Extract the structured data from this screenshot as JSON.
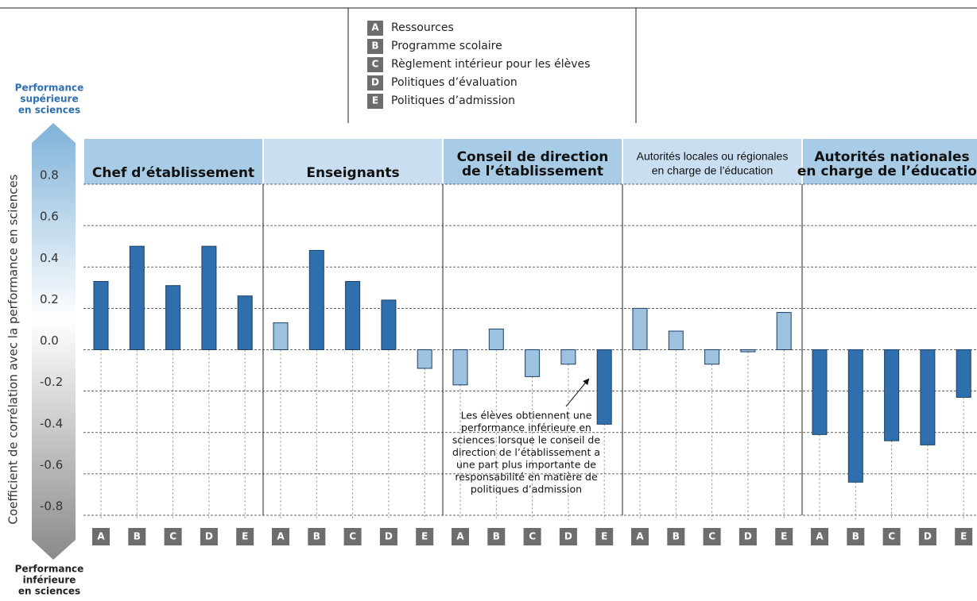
{
  "chart_data": {
    "type": "bar",
    "ylabel": "Coefficient de corrélation avec la performance en sciences",
    "top_label": [
      "Performance",
      "supérieure",
      "en sciences"
    ],
    "bottom_label": [
      "Performance",
      "inférieure",
      "en sciences"
    ],
    "categories": [
      "A",
      "B",
      "C",
      "D",
      "E"
    ],
    "legend": [
      "Ressources",
      "Programme scolaire",
      "Règlement intérieur pour les élèves",
      "Politiques d’évaluation",
      "Politiques d’admission"
    ],
    "ylim": [
      -0.8,
      0.8
    ],
    "yticks": [
      0.8,
      0.6,
      0.4,
      0.2,
      {
        "value": 0,
        "label": "0.0"
      },
      -0.2,
      -0.4,
      -0.6,
      -0.8
    ],
    "grid": true,
    "groups": [
      {
        "header": [
          "Chef d’établissement"
        ],
        "values": [
          0.33,
          0.5,
          0.31,
          0.5,
          0.26
        ],
        "colors": [
          "#2f6fad",
          "#2f6fad",
          "#2f6fad",
          "#2f6fad",
          "#2f6fad"
        ]
      },
      {
        "header": [
          "Enseignants"
        ],
        "values": [
          0.13,
          0.48,
          0.33,
          0.24,
          -0.09
        ],
        "colors": [
          "#9cc2e0",
          "#2f6fad",
          "#2f6fad",
          "#2f6fad",
          "#9cc2e0"
        ]
      },
      {
        "header": [
          "Conseil de direction",
          "de l’établissement"
        ],
        "values": [
          -0.17,
          0.1,
          -0.13,
          -0.07,
          -0.36
        ],
        "colors": [
          "#9cc2e0",
          "#9cc2e0",
          "#9cc2e0",
          "#9cc2e0",
          "#2f6fad"
        ]
      },
      {
        "header": [
          "Autorités locales ou régionales",
          "en charge de l’éducation"
        ],
        "values": [
          0.2,
          0.09,
          -0.07,
          -0.01,
          0.18
        ],
        "colors": [
          "#9cc2e0",
          "#9cc2e0",
          "#9cc2e0",
          "#9cc2e0",
          "#9cc2e0"
        ]
      },
      {
        "header": [
          "Autorités nationales",
          "en charge de l’éducation"
        ],
        "values": [
          -0.41,
          -0.64,
          -0.44,
          -0.46,
          -0.23
        ],
        "colors": [
          "#2f6fad",
          "#2f6fad",
          "#2f6fad",
          "#2f6fad",
          "#2f6fad"
        ]
      }
    ],
    "annotation": [
      "Les élèves obtiennent une",
      "performance inférieure en",
      "sciences lorsque le conseil de",
      "direction de l’établissement a",
      "une part plus importante de",
      "responsabilité en matière de",
      "politiques d’admission"
    ]
  }
}
